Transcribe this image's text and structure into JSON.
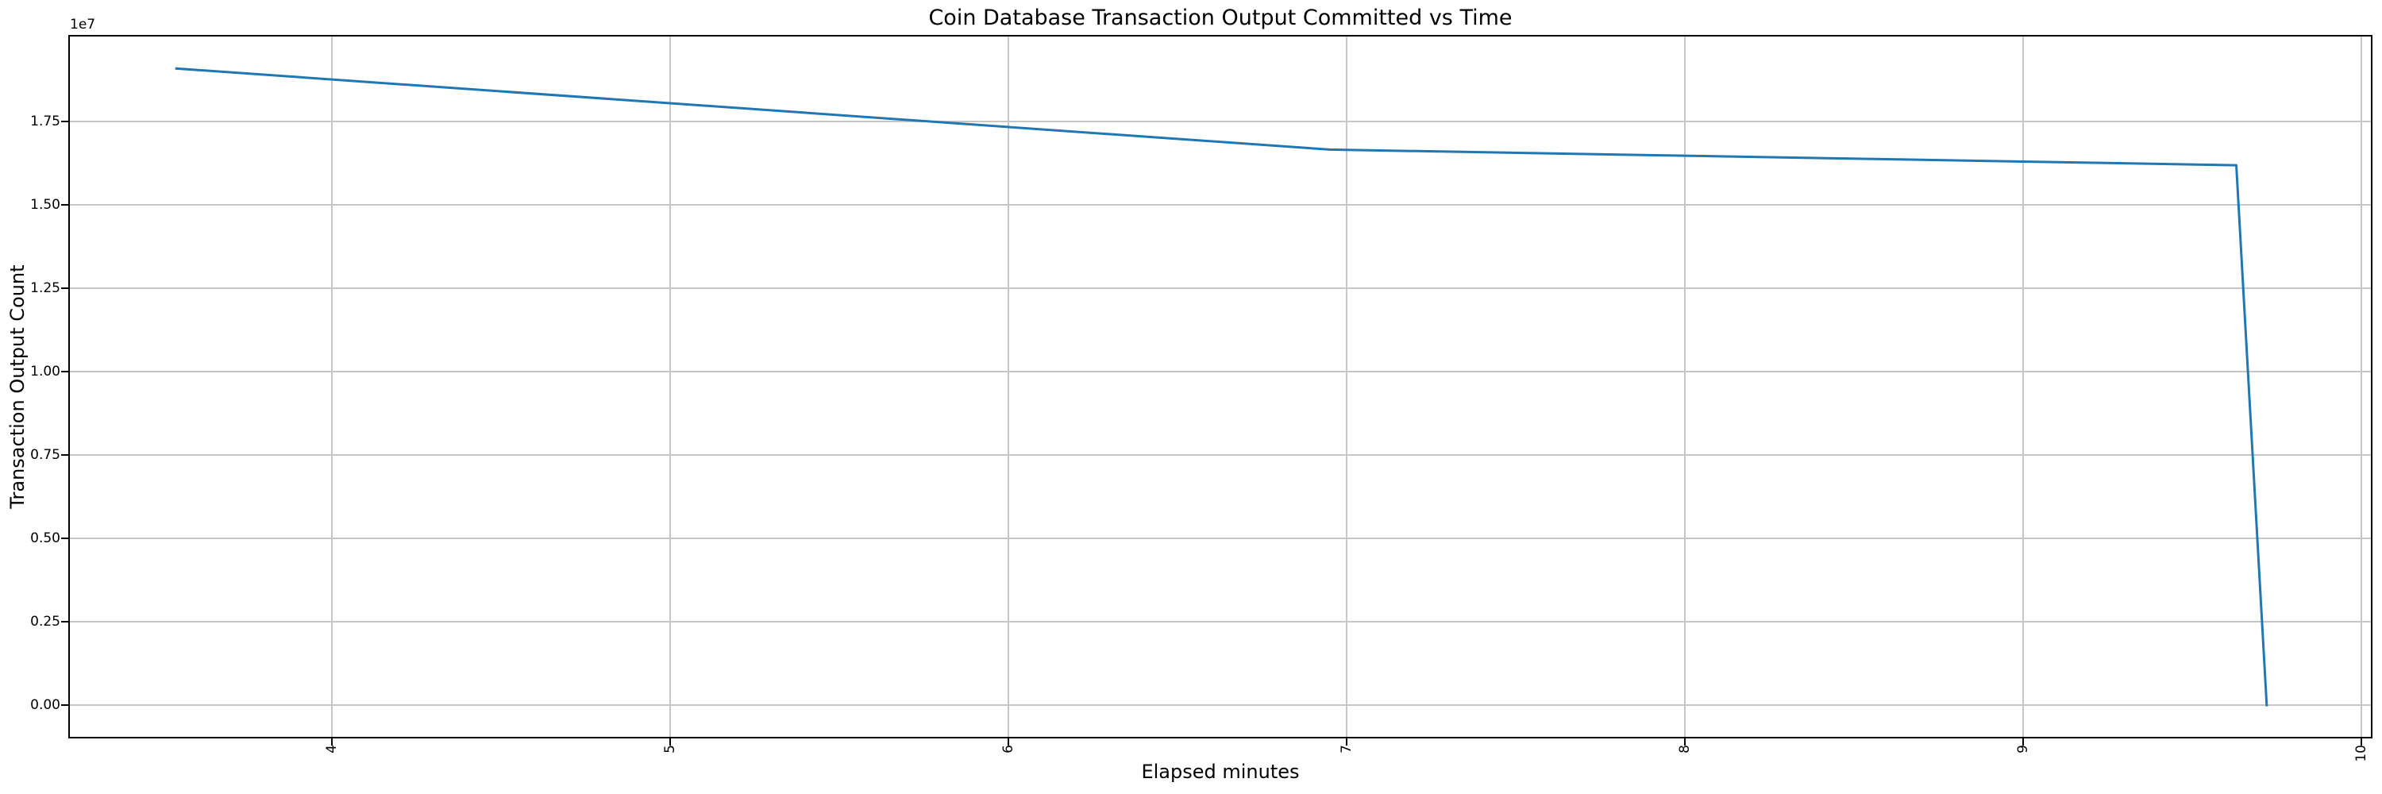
{
  "chart_data": {
    "type": "line",
    "title": "Coin Database Transaction Output Committed vs Time",
    "xlabel": "Elapsed minutes",
    "ylabel": "Transaction Output Count",
    "y_offset_label": "1e7",
    "xlim": [
      3.225,
      10.028
    ],
    "ylim": [
      -950000,
      20050000
    ],
    "grid": true,
    "legend_position": "none",
    "x_ticks": {
      "values": [
        4,
        5,
        6,
        7,
        8,
        9,
        10
      ],
      "labels": [
        "4",
        "5",
        "6",
        "7",
        "8",
        "9",
        "10"
      ],
      "rotation_degrees": 90
    },
    "y_ticks": {
      "values": [
        0,
        2500000,
        5000000,
        7500000,
        10000000,
        12500000,
        15000000,
        17500000
      ],
      "labels": [
        "0.00",
        "0.25",
        "0.50",
        "0.75",
        "1.00",
        "1.25",
        "1.50",
        "1.75"
      ]
    },
    "series": [
      {
        "name": "Transaction Output Count",
        "color": "#1f77b4",
        "points": [
          [
            3.54,
            19090000
          ],
          [
            6.95,
            16660000
          ],
          [
            9.63,
            16190000
          ],
          [
            9.72,
            0
          ]
        ]
      }
    ],
    "colors": {
      "line": "#1f77b4",
      "grid": "#c6c6c6",
      "spine": "#000000",
      "background": "#ffffff",
      "text": "#000000"
    }
  }
}
